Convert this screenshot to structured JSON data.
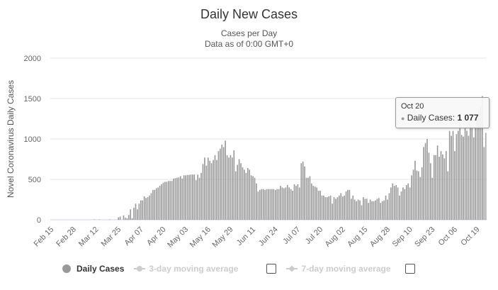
{
  "chart_data": {
    "type": "bar",
    "title": "Daily New Cases",
    "subtitle": "Cases per Day",
    "subtitle2": "Data as of 0:00 GMT+0",
    "ylabel": "Novel Coronavirus Daily Cases",
    "xlabel": "",
    "ylim": [
      0,
      2000
    ],
    "yticks": [
      "0",
      "500",
      "1000",
      "1500",
      "2000"
    ],
    "ytick_values": [
      0,
      500,
      1000,
      1500,
      2000
    ],
    "start_date": "Feb 15",
    "xtick_labels": [
      "Feb 15",
      "Feb 28",
      "Mar 12",
      "Mar 25",
      "Apr 07",
      "Apr 20",
      "May 03",
      "May 16",
      "May 29",
      "Jun 11",
      "Jun 24",
      "Jul 07",
      "Jul 20",
      "Aug 02",
      "Aug 15",
      "Aug 28",
      "Sep 10",
      "Sep 23",
      "Oct 06",
      "Oct 19"
    ],
    "xtick_step_days": 13,
    "grid": true,
    "bar_color": "#999999",
    "legend_position": "bottom",
    "values": [
      0,
      0,
      0,
      0,
      0,
      0,
      0,
      0,
      0,
      0,
      0,
      0,
      0,
      0,
      0,
      0,
      0,
      0,
      0,
      0,
      0,
      0,
      0,
      0,
      0,
      5,
      0,
      0,
      5,
      0,
      0,
      0,
      0,
      0,
      5,
      0,
      0,
      0,
      0,
      30,
      40,
      0,
      55,
      25,
      20,
      60,
      130,
      20,
      150,
      200,
      130,
      200,
      240,
      240,
      290,
      270,
      280,
      300,
      330,
      370,
      370,
      390,
      400,
      420,
      440,
      460,
      470,
      470,
      480,
      480,
      480,
      510,
      515,
      520,
      525,
      540,
      510,
      550,
      550,
      555,
      555,
      560,
      560,
      560,
      490,
      560,
      520,
      580,
      690,
      770,
      670,
      770,
      730,
      700,
      740,
      800,
      740,
      850,
      880,
      930,
      900,
      980,
      800,
      770,
      800,
      770,
      860,
      600,
      680,
      750,
      700,
      650,
      620,
      580,
      640,
      620,
      550,
      540,
      520,
      450,
      350,
      370,
      380,
      380,
      370,
      380,
      380,
      380,
      380,
      380,
      370,
      380,
      380,
      420,
      400,
      390,
      400,
      430,
      400,
      380,
      360,
      440,
      420,
      440,
      400,
      700,
      720,
      660,
      520,
      520,
      540,
      450,
      420,
      410,
      400,
      360,
      360,
      300,
      300,
      280,
      280,
      290,
      300,
      200,
      280,
      260,
      280,
      300,
      330,
      290,
      300,
      350,
      370,
      370,
      260,
      300,
      250,
      230,
      250,
      240,
      180,
      280,
      260,
      260,
      210,
      250,
      230,
      230,
      240,
      260,
      270,
      210,
      230,
      240,
      300,
      250,
      330,
      400,
      450,
      420,
      430,
      400,
      300,
      350,
      400,
      380,
      430,
      450,
      400,
      550,
      620,
      730,
      610,
      600,
      530,
      650,
      900,
      950,
      1000,
      830,
      700,
      520,
      800,
      800,
      920,
      780,
      850,
      810,
      760,
      850,
      600,
      1100,
      1040,
      1100,
      850,
      1060,
      1100,
      1250,
      1050,
      1030,
      1150,
      1100,
      1040,
      1170,
      1150,
      1020,
      1150,
      1250,
      1350,
      1400,
      1530,
      900,
      1077
    ]
  },
  "tooltip": {
    "date": "Oct 20",
    "series": "Daily Cases",
    "value": "1 077"
  },
  "legend": {
    "items": [
      {
        "label": "Daily Cases"
      },
      {
        "label": "3-day moving average"
      },
      {
        "label": "7-day moving average"
      }
    ]
  }
}
